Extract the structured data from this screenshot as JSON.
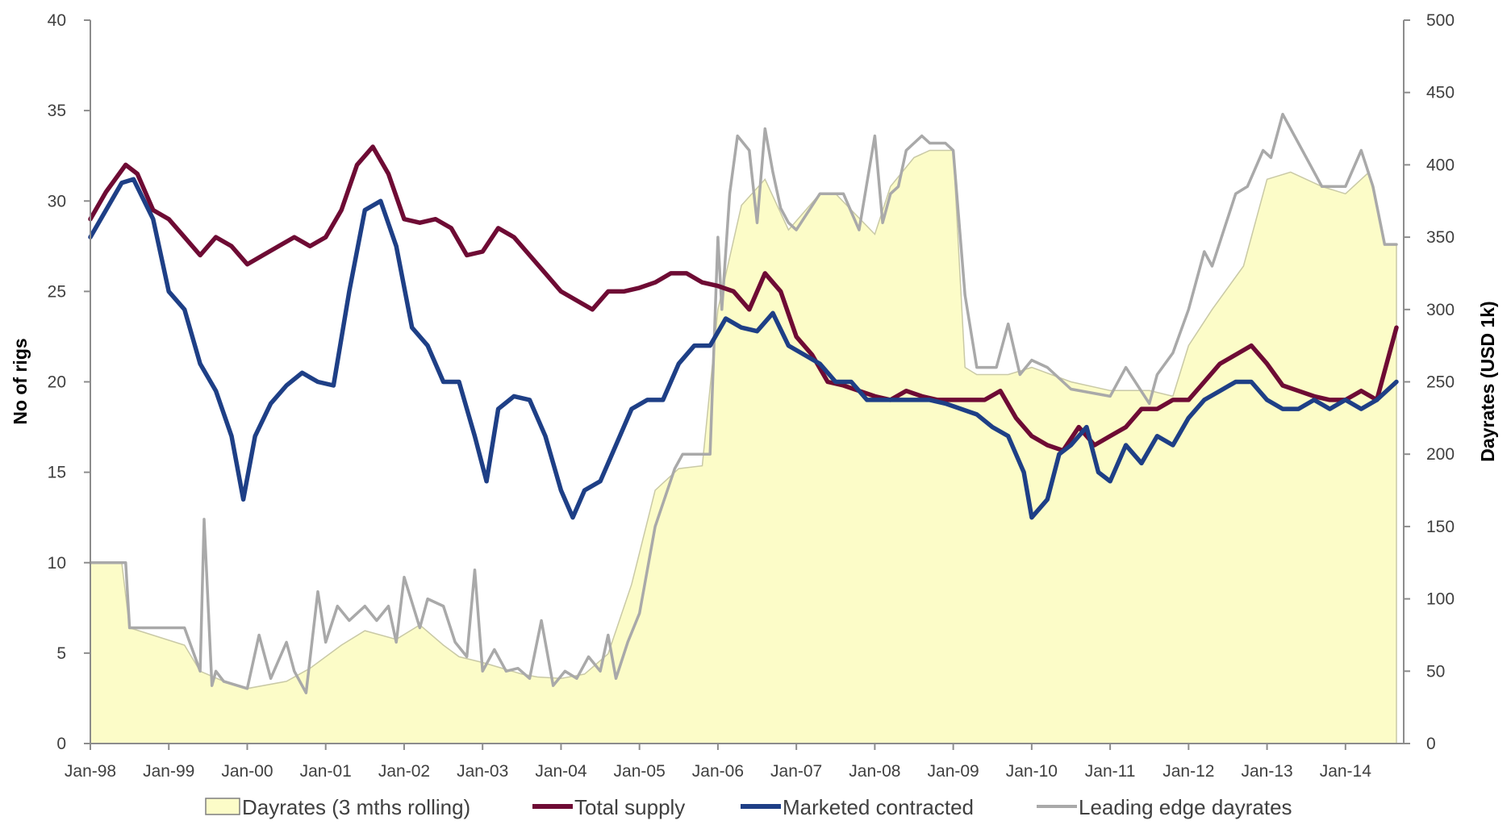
{
  "chart_data": {
    "type": "line",
    "title": "",
    "xlabel": "",
    "ylabel_left": "No of rigs",
    "ylabel_right": "Dayrates (USD 1k)",
    "ylim_left": [
      0,
      40
    ],
    "ylim_right": [
      0,
      500
    ],
    "yticks_left": [
      "0",
      "5",
      "10",
      "15",
      "20",
      "25",
      "30",
      "35",
      "40"
    ],
    "yticks_right": [
      "0",
      "50",
      "100",
      "150",
      "200",
      "250",
      "300",
      "350",
      "400",
      "450",
      "500"
    ],
    "xticks": [
      "Jan-98",
      "Jan-99",
      "Jan-00",
      "Jan-01",
      "Jan-02",
      "Jan-03",
      "Jan-04",
      "Jan-05",
      "Jan-06",
      "Jan-07",
      "Jan-08",
      "Jan-09",
      "Jan-10",
      "Jan-11",
      "Jan-12",
      "Jan-13",
      "Jan-14"
    ],
    "grid": false,
    "legend_position": "bottom",
    "colors": {
      "dayrates_fill": "#fcfcc8",
      "dayrates_stroke": "#c9c9a6",
      "total_supply": "#6e0b34",
      "marketed_contracted": "#1e3f86",
      "leading_edge": "#a9a9a9",
      "axis": "#8c8c8c"
    },
    "series": [
      {
        "name": "Dayrates (3 mths rolling)",
        "type": "area",
        "axis": "right",
        "x": [
          1998.0,
          1998.4,
          1998.5,
          1999.2,
          1999.4,
          1999.7,
          2000.0,
          2000.5,
          2000.8,
          2001.2,
          2001.5,
          2001.9,
          2002.2,
          2002.5,
          2002.7,
          2003.0,
          2003.5,
          2003.7,
          2004.0,
          2004.3,
          2004.6,
          2004.9,
          2005.2,
          2005.5,
          2005.8,
          2006.0,
          2006.3,
          2006.6,
          2006.9,
          2007.3,
          2007.5,
          2008.0,
          2008.2,
          2008.5,
          2008.7,
          2009.0,
          2009.15,
          2009.3,
          2009.7,
          2010.0,
          2010.5,
          2011.0,
          2011.2,
          2011.5,
          2011.8,
          2012.0,
          2012.3,
          2012.7,
          2013.0,
          2013.3,
          2013.7,
          2014.0,
          2014.3,
          2014.5,
          2014.65
        ],
        "values": [
          125,
          125,
          80,
          68,
          50,
          43,
          38,
          43,
          52,
          68,
          78,
          72,
          82,
          68,
          60,
          56,
          48,
          46,
          45,
          48,
          62,
          110,
          175,
          190,
          192,
          300,
          372,
          390,
          355,
          380,
          380,
          352,
          385,
          405,
          410,
          410,
          260,
          255,
          255,
          260,
          250,
          244,
          244,
          244,
          240,
          275,
          300,
          330,
          390,
          395,
          385,
          380,
          395,
          345,
          345
        ]
      },
      {
        "name": "Total supply",
        "axis": "left",
        "x": [
          1998.0,
          1998.2,
          1998.45,
          1998.6,
          1998.8,
          1999.0,
          1999.2,
          1999.4,
          1999.6,
          1999.8,
          2000.0,
          2000.2,
          2000.4,
          2000.6,
          2000.8,
          2001.0,
          2001.2,
          2001.4,
          2001.6,
          2001.8,
          2002.0,
          2002.2,
          2002.4,
          2002.6,
          2002.8,
          2003.0,
          2003.2,
          2003.4,
          2003.6,
          2003.8,
          2004.0,
          2004.2,
          2004.4,
          2004.6,
          2004.8,
          2005.0,
          2005.2,
          2005.4,
          2005.6,
          2005.8,
          2006.0,
          2006.2,
          2006.4,
          2006.6,
          2006.8,
          2007.0,
          2007.2,
          2007.4,
          2007.6,
          2007.8,
          2008.0,
          2008.2,
          2008.4,
          2008.6,
          2008.8,
          2009.0,
          2009.2,
          2009.4,
          2009.6,
          2009.8,
          2010.0,
          2010.2,
          2010.4,
          2010.6,
          2010.8,
          2011.0,
          2011.2,
          2011.4,
          2011.6,
          2011.8,
          2012.0,
          2012.2,
          2012.4,
          2012.6,
          2012.8,
          2013.0,
          2013.2,
          2013.4,
          2013.6,
          2013.8,
          2014.0,
          2014.2,
          2014.4,
          2014.65
        ],
        "values": [
          29,
          30.5,
          32,
          31.5,
          29.5,
          29,
          28,
          27,
          28,
          27.5,
          26.5,
          27,
          27.5,
          28,
          27.5,
          28,
          29.5,
          32,
          33,
          31.5,
          29,
          28.8,
          29,
          28.5,
          27,
          27.2,
          28.5,
          28,
          27,
          26,
          25,
          24.5,
          24,
          25,
          25,
          25.2,
          25.5,
          26,
          26,
          25.5,
          25.3,
          25,
          24,
          26,
          25,
          22.5,
          21.5,
          20,
          19.8,
          19.5,
          19.2,
          19,
          19.5,
          19.2,
          19,
          19,
          19,
          19,
          19.5,
          18,
          17,
          16.5,
          16.2,
          17.5,
          16.5,
          17,
          17.5,
          18.5,
          18.5,
          19,
          19,
          20,
          21,
          21.5,
          22,
          21,
          19.8,
          19.5,
          19.2,
          19,
          19,
          19.5,
          19,
          23
        ]
      },
      {
        "name": "Marketed contracted",
        "axis": "left",
        "x": [
          1998.0,
          1998.2,
          1998.4,
          1998.55,
          1998.8,
          1999.0,
          1999.2,
          1999.4,
          1999.6,
          1999.8,
          1999.95,
          2000.1,
          2000.3,
          2000.5,
          2000.7,
          2000.9,
          2001.1,
          2001.3,
          2001.5,
          2001.7,
          2001.9,
          2002.1,
          2002.3,
          2002.5,
          2002.7,
          2002.9,
          2003.05,
          2003.2,
          2003.4,
          2003.6,
          2003.8,
          2004.0,
          2004.15,
          2004.3,
          2004.5,
          2004.7,
          2004.9,
          2005.1,
          2005.3,
          2005.5,
          2005.7,
          2005.9,
          2006.1,
          2006.3,
          2006.5,
          2006.7,
          2006.9,
          2007.1,
          2007.3,
          2007.5,
          2007.7,
          2007.9,
          2008.1,
          2008.3,
          2008.5,
          2008.7,
          2008.9,
          2009.1,
          2009.3,
          2009.5,
          2009.7,
          2009.9,
          2010.0,
          2010.2,
          2010.35,
          2010.5,
          2010.7,
          2010.85,
          2011.0,
          2011.2,
          2011.4,
          2011.6,
          2011.8,
          2012.0,
          2012.2,
          2012.4,
          2012.6,
          2012.8,
          2013.0,
          2013.2,
          2013.4,
          2013.6,
          2013.8,
          2014.0,
          2014.2,
          2014.4,
          2014.65
        ],
        "values": [
          28,
          29.5,
          31,
          31.2,
          29,
          25,
          24,
          21,
          19.5,
          17,
          13.5,
          17,
          18.8,
          19.8,
          20.5,
          20,
          19.8,
          25,
          29.5,
          30,
          27.5,
          23,
          22,
          20,
          20,
          17,
          14.5,
          18.5,
          19.2,
          19,
          17,
          14,
          12.5,
          14,
          14.5,
          16.5,
          18.5,
          19,
          19,
          21,
          22,
          22,
          23.5,
          23,
          22.8,
          23.8,
          22,
          21.5,
          21,
          20,
          20,
          19,
          19,
          19,
          19,
          19,
          18.8,
          18.5,
          18.2,
          17.5,
          17,
          15,
          12.5,
          13.5,
          16,
          16.5,
          17.5,
          15,
          14.5,
          16.5,
          15.5,
          17,
          16.5,
          18,
          19,
          19.5,
          20,
          20,
          19,
          18.5,
          18.5,
          19,
          18.5,
          19,
          18.5,
          19,
          20
        ]
      },
      {
        "name": "Leading edge dayrates",
        "axis": "right",
        "x": [
          1998.0,
          1998.45,
          1998.5,
          1999.2,
          1999.4,
          1999.45,
          1999.55,
          1999.6,
          1999.7,
          2000.0,
          2000.15,
          2000.3,
          2000.5,
          2000.6,
          2000.75,
          2000.9,
          2001.0,
          2001.15,
          2001.3,
          2001.5,
          2001.65,
          2001.8,
          2001.9,
          2002.0,
          2002.2,
          2002.3,
          2002.5,
          2002.65,
          2002.8,
          2002.9,
          2003.0,
          2003.15,
          2003.3,
          2003.45,
          2003.6,
          2003.75,
          2003.9,
          2004.05,
          2004.2,
          2004.35,
          2004.5,
          2004.6,
          2004.7,
          2004.85,
          2005.0,
          2005.2,
          2005.45,
          2005.55,
          2005.75,
          2005.9,
          2006.0,
          2006.05,
          2006.15,
          2006.25,
          2006.4,
          2006.5,
          2006.6,
          2006.7,
          2006.8,
          2006.9,
          2007.0,
          2007.3,
          2007.6,
          2007.8,
          2008.0,
          2008.1,
          2008.2,
          2008.3,
          2008.4,
          2008.6,
          2008.7,
          2008.9,
          2009.0,
          2009.15,
          2009.3,
          2009.55,
          2009.7,
          2009.85,
          2010.0,
          2010.2,
          2010.5,
          2011.0,
          2011.2,
          2011.5,
          2011.6,
          2011.8,
          2012.0,
          2012.2,
          2012.3,
          2012.45,
          2012.6,
          2012.75,
          2012.95,
          2013.05,
          2013.2,
          2013.4,
          2013.55,
          2013.7,
          2014.0,
          2014.2,
          2014.35,
          2014.5,
          2014.65
        ],
        "values": [
          125,
          125,
          80,
          80,
          50,
          155,
          40,
          50,
          43,
          38,
          75,
          45,
          70,
          50,
          35,
          105,
          70,
          95,
          85,
          95,
          85,
          95,
          70,
          115,
          80,
          100,
          95,
          70,
          60,
          120,
          50,
          65,
          50,
          52,
          45,
          85,
          40,
          50,
          45,
          60,
          50,
          75,
          45,
          70,
          90,
          150,
          190,
          200,
          200,
          200,
          350,
          300,
          380,
          420,
          410,
          360,
          425,
          395,
          370,
          360,
          355,
          380,
          380,
          355,
          420,
          360,
          380,
          385,
          410,
          420,
          415,
          415,
          410,
          310,
          260,
          260,
          290,
          255,
          265,
          260,
          245,
          240,
          260,
          235,
          255,
          270,
          300,
          340,
          330,
          355,
          380,
          385,
          410,
          405,
          435,
          415,
          400,
          385,
          385,
          410,
          385,
          345,
          345
        ]
      }
    ]
  }
}
